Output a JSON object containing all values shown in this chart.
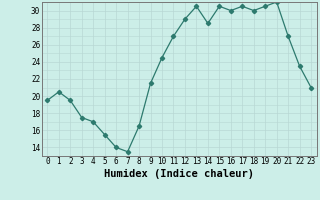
{
  "x": [
    0,
    1,
    2,
    3,
    4,
    5,
    6,
    7,
    8,
    9,
    10,
    11,
    12,
    13,
    14,
    15,
    16,
    17,
    18,
    19,
    20,
    21,
    22,
    23
  ],
  "y": [
    19.5,
    20.5,
    19.5,
    17.5,
    17.0,
    15.5,
    14.0,
    13.5,
    16.5,
    21.5,
    24.5,
    27.0,
    29.0,
    30.5,
    28.5,
    30.5,
    30.0,
    30.5,
    30.0,
    30.5,
    31.0,
    27.0,
    23.5,
    21.0
  ],
  "xlabel": "Humidex (Indice chaleur)",
  "ylim": [
    13,
    31
  ],
  "xlim": [
    -0.5,
    23.5
  ],
  "yticks": [
    14,
    16,
    18,
    20,
    22,
    24,
    26,
    28,
    30
  ],
  "xticks": [
    0,
    1,
    2,
    3,
    4,
    5,
    6,
    7,
    8,
    9,
    10,
    11,
    12,
    13,
    14,
    15,
    16,
    17,
    18,
    19,
    20,
    21,
    22,
    23
  ],
  "line_color": "#2d7a6e",
  "marker": "D",
  "marker_size": 2.2,
  "bg_color": "#cceee8",
  "grid_color": "#b8d8d4",
  "font_color": "#000000",
  "tick_fontsize": 5.5,
  "xlabel_fontsize": 7.5
}
